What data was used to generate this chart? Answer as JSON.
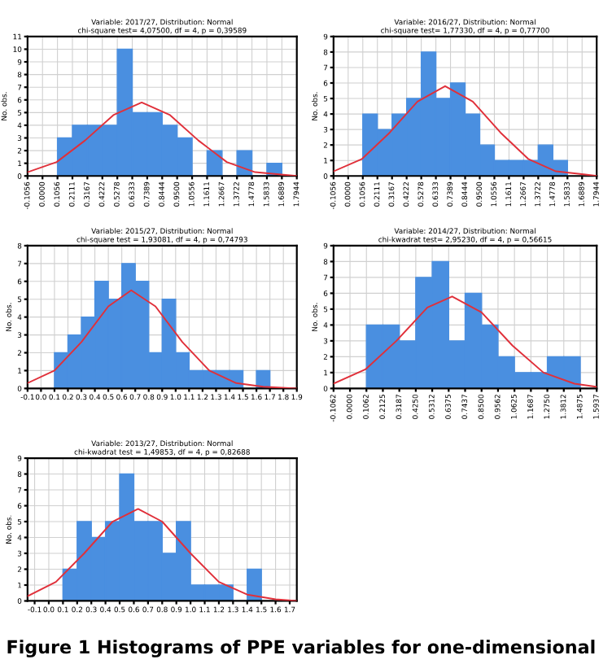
{
  "chart_data": [
    {
      "type": "histogram",
      "title": "Variable: 2017/27, Distribution: Normal",
      "subtitle": "chi-square test= 4,07500, df = 4, p = 0,39589",
      "ylabel": "No. obs.",
      "bins": [
        0.1056,
        0.2111,
        0.3167,
        0.4222,
        0.5278,
        0.6333,
        0.7389,
        0.8444,
        0.95,
        1.0556,
        1.1611,
        1.2667,
        1.3722,
        1.4778,
        1.5833,
        1.6889
      ],
      "values": [
        3,
        4,
        4,
        4,
        10,
        5,
        5,
        4,
        3,
        0,
        2,
        0,
        2,
        0,
        1
      ],
      "color": "#4a8fe0",
      "series": [
        {
          "type": "line",
          "color": "#e0303a",
          "x": [
            -0.1056,
            0.1,
            0.3,
            0.5,
            0.7,
            0.9,
            1.1,
            1.3,
            1.5,
            1.7,
            1.7944
          ],
          "values": [
            0.3,
            1.1,
            2.8,
            4.8,
            5.8,
            4.8,
            2.8,
            1.1,
            0.3,
            0.1,
            0
          ]
        }
      ],
      "xlim": [
        -0.1056,
        1.7944
      ],
      "ylim": [
        0,
        11
      ],
      "xticks": [
        -0.1056,
        {
          "value": 0,
          "label": "0.0000"
        },
        0.1056,
        0.2111,
        0.3167,
        {
          "value": 0.4222,
          "label": "0.4222"
        },
        0.5278,
        0.6333,
        0.7389,
        0.8444,
        {
          "value": 0.95,
          "label": "0.9500"
        },
        1.0556,
        1.1611,
        1.2667,
        1.3722,
        1.4778,
        1.5833,
        1.6889,
        1.7944
      ],
      "yticks": [
        0,
        1,
        2,
        3,
        4,
        5,
        6,
        7,
        8,
        9,
        10,
        11
      ],
      "grid": true
    },
    {
      "type": "histogram",
      "title": "Variable: 2016/27, Distribution: Normal",
      "subtitle": "chi-square test= 1,77330, df = 4, p = 0,77700",
      "ylabel": "No. obs.",
      "bins": [
        0.1056,
        0.2111,
        0.3167,
        0.4222,
        0.5278,
        0.6333,
        0.7389,
        0.8444,
        0.95,
        1.0556,
        1.1611,
        1.2667,
        1.3722,
        1.4778,
        1.5833
      ],
      "values": [
        4,
        3,
        4,
        5,
        8,
        5,
        6,
        4,
        2,
        1,
        1,
        1,
        2,
        1
      ],
      "color": "#4a8fe0",
      "series": [
        {
          "type": "line",
          "color": "#e0303a",
          "x": [
            -0.1056,
            0.1,
            0.3,
            0.5,
            0.7,
            0.9,
            1.1,
            1.3,
            1.5,
            1.7,
            1.7944
          ],
          "values": [
            0.3,
            1.1,
            2.8,
            4.8,
            5.8,
            4.8,
            2.8,
            1.1,
            0.3,
            0.1,
            0
          ]
        }
      ],
      "xlim": [
        -0.1056,
        1.7944
      ],
      "ylim": [
        0,
        9
      ],
      "xticks": [
        -0.1056,
        {
          "value": 0,
          "label": "0.0000"
        },
        0.1056,
        0.2111,
        0.3167,
        {
          "value": 0.4222,
          "label": "0.4222"
        },
        0.5278,
        0.6333,
        0.7389,
        0.8444,
        {
          "value": 0.95,
          "label": "0.9500"
        },
        1.0556,
        1.1611,
        1.2667,
        1.3722,
        1.4778,
        1.5833,
        1.6889,
        1.7944
      ],
      "yticks": [
        0,
        1,
        2,
        3,
        4,
        5,
        6,
        7,
        8,
        9
      ],
      "grid": true
    },
    {
      "type": "histogram",
      "title": "Variable: 2015/27, Distribution: Normal",
      "subtitle": "chi-square test = 1,93081, df = 4, p = 0,74793",
      "ylabel": "No. obs.",
      "bins": [
        0.1,
        0.2,
        0.3,
        0.4,
        0.5,
        0.6,
        0.7,
        0.8,
        0.9,
        1.0,
        1.1,
        1.2,
        1.3,
        1.4,
        1.5,
        1.6,
        1.7
      ],
      "values": [
        2,
        3,
        4,
        6,
        5,
        7,
        6,
        2,
        5,
        2,
        1,
        1,
        1,
        1,
        0,
        1
      ],
      "color": "#4a8fe0",
      "series": [
        {
          "type": "line",
          "color": "#e0303a",
          "x": [
            -0.1,
            0.1,
            0.3,
            0.5,
            0.67,
            0.85,
            1.05,
            1.25,
            1.45,
            1.65,
            1.9
          ],
          "values": [
            0.3,
            1.0,
            2.6,
            4.6,
            5.5,
            4.6,
            2.6,
            1.0,
            0.3,
            0.1,
            0
          ]
        }
      ],
      "xlim": [
        -0.1,
        1.9
      ],
      "ylim": [
        0,
        8
      ],
      "xticks": [
        -0.1,
        {
          "value": 0,
          "label": "0.0"
        },
        0.1,
        0.2,
        0.3,
        0.4,
        0.5,
        0.6,
        0.7,
        0.8,
        0.9,
        {
          "value": 1,
          "label": "1.0"
        },
        1.1,
        1.2,
        1.3,
        1.4,
        1.5,
        1.6,
        1.7,
        1.8,
        1.9
      ],
      "yticks": [
        0,
        1,
        2,
        3,
        4,
        5,
        6,
        7,
        8
      ],
      "grid": true
    },
    {
      "type": "histogram",
      "title": "Variable: 2014/27, Distribution: Normal",
      "subtitle": "chi-kwadrat test= 2,95230, df = 4, p = 0,56615",
      "ylabel": "No. obs.",
      "bins": [
        0.1062,
        0.2125,
        0.3187,
        0.425,
        0.5312,
        0.6375,
        0.7437,
        0.85,
        0.9562,
        1.0625,
        1.1687,
        1.275,
        1.3812,
        1.4875
      ],
      "values": [
        4,
        4,
        3,
        7,
        8,
        3,
        6,
        4,
        2,
        1,
        1,
        2,
        2
      ],
      "color": "#4a8fe0",
      "series": [
        {
          "type": "line",
          "color": "#e0303a",
          "x": [
            -0.1062,
            0.1,
            0.3,
            0.5,
            0.66,
            0.85,
            1.05,
            1.25,
            1.45,
            1.5937
          ],
          "values": [
            0.3,
            1.2,
            3.0,
            5.1,
            5.8,
            4.8,
            2.7,
            1.0,
            0.3,
            0.1
          ]
        }
      ],
      "xlim": [
        -0.1062,
        1.5937
      ],
      "ylim": [
        0,
        9
      ],
      "xticks": [
        -0.1062,
        {
          "value": 0,
          "label": "0.0000"
        },
        0.1062,
        0.2125,
        0.3187,
        {
          "value": 0.425,
          "label": "0.4250"
        },
        0.5312,
        0.6375,
        0.7437,
        {
          "value": 0.85,
          "label": "0.8500"
        },
        0.9562,
        1.0625,
        1.1687,
        {
          "value": 1.275,
          "label": "1.2750"
        },
        1.3812,
        1.4875,
        1.5937
      ],
      "yticks": [
        0,
        1,
        2,
        3,
        4,
        5,
        6,
        7,
        8,
        9
      ],
      "grid": true
    },
    {
      "type": "histogram",
      "title": "Variable: 2013/27, Distribution: Normal",
      "subtitle": "chi-kwadrat test = 1,49853, df = 4, p = 0,82688",
      "ylabel": "No. obs.",
      "bins": [
        0.1,
        0.2,
        0.3,
        0.4,
        0.5,
        0.6,
        0.7,
        0.8,
        0.9,
        1.0,
        1.1,
        1.2,
        1.3,
        1.4,
        1.5
      ],
      "values": [
        2,
        5,
        4,
        5,
        8,
        5,
        5,
        3,
        5,
        1,
        1,
        1,
        0,
        2
      ],
      "color": "#4a8fe0",
      "series": [
        {
          "type": "line",
          "color": "#e0303a",
          "x": [
            -0.15,
            0.05,
            0.25,
            0.45,
            0.63,
            0.8,
            1.0,
            1.2,
            1.4,
            1.6,
            1.75
          ],
          "values": [
            0.3,
            1.2,
            3.0,
            5.0,
            5.8,
            5.0,
            3.0,
            1.2,
            0.4,
            0.1,
            0
          ]
        }
      ],
      "xlim": [
        -0.15,
        1.75
      ],
      "ylim": [
        0,
        9
      ],
      "xticks": [
        -0.1,
        {
          "value": 0,
          "label": "0.0"
        },
        0.1,
        0.2,
        0.3,
        0.4,
        0.5,
        0.6,
        0.7,
        0.8,
        0.9,
        {
          "value": 1,
          "label": "1.0"
        },
        1.1,
        1.2,
        1.3,
        1.4,
        1.5,
        1.6,
        1.7
      ],
      "yticks": [
        0,
        1,
        2,
        3,
        4,
        5,
        6,
        7,
        8,
        9
      ],
      "grid": true,
      "annotations": [
        "Figure 1 Histograms of PPE variables for one-dimensional"
      ]
    }
  ]
}
